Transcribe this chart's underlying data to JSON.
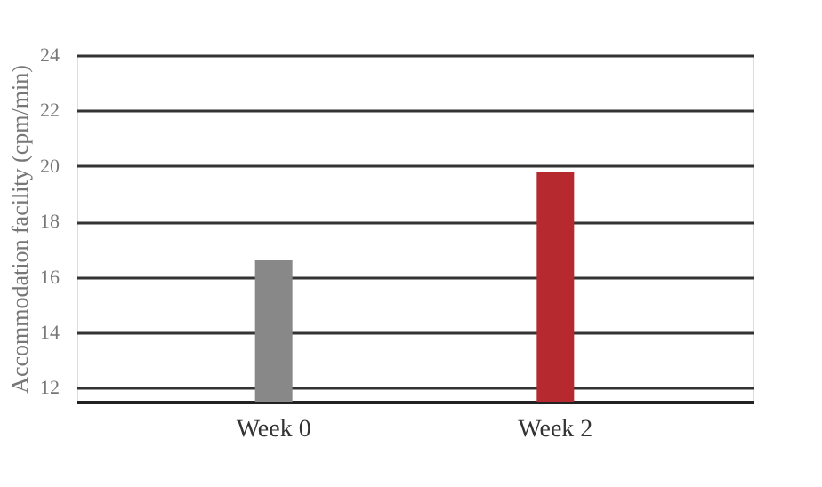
{
  "chart_data": {
    "type": "bar",
    "ylabel": "Accommodation facility (cpm/min)",
    "categories": [
      "Week 0",
      "Week 2"
    ],
    "values": [
      16.6,
      19.8
    ],
    "colors": [
      "#888888",
      "#b5292f"
    ],
    "ylim": [
      11.5,
      24
    ],
    "yticks": [
      12,
      14,
      16,
      18,
      20,
      22,
      24
    ],
    "grid": "y"
  }
}
